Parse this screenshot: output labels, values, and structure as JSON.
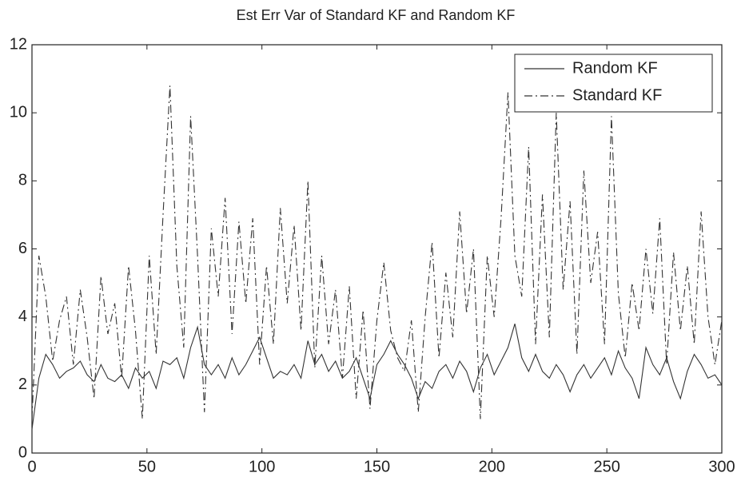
{
  "chart_data": {
    "type": "line",
    "title": "Est Err Var of Standard KF and Random KF",
    "x": [
      0,
      3,
      6,
      9,
      12,
      15,
      18,
      21,
      24,
      27,
      30,
      33,
      36,
      39,
      42,
      45,
      48,
      51,
      54,
      57,
      60,
      63,
      66,
      69,
      72,
      75,
      78,
      81,
      84,
      87,
      90,
      93,
      96,
      99,
      102,
      105,
      108,
      111,
      114,
      117,
      120,
      123,
      126,
      129,
      132,
      135,
      138,
      141,
      144,
      147,
      150,
      153,
      156,
      159,
      162,
      165,
      168,
      171,
      174,
      177,
      180,
      183,
      186,
      189,
      192,
      195,
      198,
      201,
      204,
      207,
      210,
      213,
      216,
      219,
      222,
      225,
      228,
      231,
      234,
      237,
      240,
      243,
      246,
      249,
      252,
      255,
      258,
      261,
      264,
      267,
      270,
      273,
      276,
      279,
      282,
      285,
      288,
      291,
      294,
      297,
      300
    ],
    "series": [
      {
        "name": "Random KF",
        "color": "#333333",
        "linestyle": "solid",
        "values": [
          0.7,
          2.2,
          2.9,
          2.6,
          2.2,
          2.4,
          2.5,
          2.7,
          2.3,
          2.1,
          2.6,
          2.2,
          2.1,
          2.3,
          1.9,
          2.5,
          2.2,
          2.4,
          1.9,
          2.7,
          2.6,
          2.8,
          2.2,
          3.1,
          3.7,
          2.6,
          2.3,
          2.6,
          2.2,
          2.8,
          2.3,
          2.6,
          3.0,
          3.4,
          2.8,
          2.2,
          2.4,
          2.3,
          2.6,
          2.2,
          3.3,
          2.6,
          2.9,
          2.4,
          2.7,
          2.2,
          2.4,
          2.8,
          2.2,
          1.6,
          2.6,
          2.9,
          3.3,
          2.9,
          2.6,
          2.2,
          1.6,
          2.1,
          1.9,
          2.4,
          2.6,
          2.2,
          2.7,
          2.4,
          1.8,
          2.5,
          2.9,
          2.3,
          2.7,
          3.1,
          3.8,
          2.8,
          2.4,
          2.9,
          2.4,
          2.2,
          2.6,
          2.3,
          1.8,
          2.3,
          2.6,
          2.2,
          2.5,
          2.8,
          2.3,
          3.0,
          2.5,
          2.2,
          1.6,
          3.1,
          2.6,
          2.3,
          2.8,
          2.1,
          1.6,
          2.4,
          2.9,
          2.6,
          2.2,
          2.3,
          2.0
        ]
      },
      {
        "name": "Standard KF",
        "color": "#333333",
        "linestyle": "dashdot",
        "values": [
          1.0,
          5.8,
          4.6,
          2.7,
          3.9,
          4.6,
          2.6,
          4.8,
          3.4,
          1.6,
          5.2,
          3.5,
          4.4,
          2.2,
          5.5,
          3.6,
          1.0,
          5.8,
          2.9,
          7.0,
          10.8,
          5.5,
          3.1,
          9.9,
          5.8,
          1.2,
          6.6,
          4.6,
          7.5,
          3.5,
          6.8,
          4.4,
          6.9,
          2.6,
          5.5,
          3.2,
          7.2,
          4.4,
          6.7,
          3.6,
          8.0,
          2.5,
          5.8,
          3.2,
          4.8,
          2.2,
          4.9,
          1.6,
          4.2,
          1.3,
          3.9,
          5.6,
          3.6,
          2.8,
          2.4,
          3.9,
          1.2,
          4.0,
          6.2,
          2.8,
          5.3,
          3.4,
          7.1,
          4.1,
          6.0,
          1.0,
          5.8,
          4.0,
          6.9,
          10.6,
          5.8,
          4.6,
          9.0,
          3.2,
          7.6,
          3.4,
          10.0,
          4.8,
          7.4,
          2.9,
          8.3,
          5.0,
          6.5,
          3.2,
          9.9,
          4.7,
          2.8,
          5.0,
          3.6,
          6.0,
          4.1,
          6.9,
          2.6,
          5.9,
          3.6,
          5.5,
          3.2,
          7.1,
          4.0,
          2.6,
          3.9
        ]
      }
    ],
    "xlim": [
      0,
      300
    ],
    "xticks": [
      0,
      50,
      100,
      150,
      200,
      250,
      300
    ],
    "ylim": [
      0,
      12
    ],
    "yticks": [
      0,
      2,
      4,
      6,
      8,
      10,
      12
    ],
    "grid": false,
    "legend": "upper right"
  }
}
